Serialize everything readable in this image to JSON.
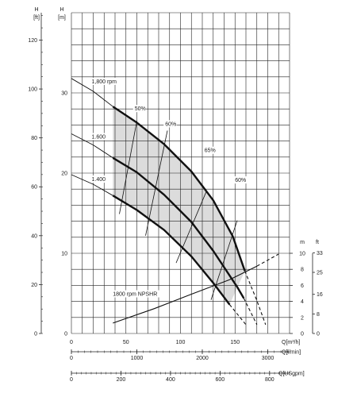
{
  "chart_data": {
    "type": "line",
    "title": "",
    "axes": {
      "h_ft": {
        "unit_label": "H",
        "unit_sub": "[ft]",
        "ticks": [
          "0",
          "20",
          "40",
          "60",
          "80",
          "100",
          "120"
        ],
        "range": [
          0,
          131.2
        ]
      },
      "h_m": {
        "unit_label": "H",
        "unit_sub": "[m]",
        "ticks": [
          "0",
          "10",
          "20",
          "30"
        ],
        "range": [
          0,
          40
        ]
      },
      "npshr_m": {
        "unit_label": "m",
        "ticks": [
          "0",
          "2",
          "4",
          "6",
          "8",
          "10"
        ],
        "range": [
          0,
          10
        ]
      },
      "npshr_ft": {
        "unit_label": "ft",
        "ticks": [
          "0",
          "8",
          "16",
          "25",
          "33"
        ],
        "range": [
          0,
          32.8
        ]
      },
      "q_m3h": {
        "unit_label": "Q[m³/h]",
        "ticks": [
          "0",
          "50",
          "100",
          "150"
        ],
        "range": [
          0,
          200
        ]
      },
      "q_lmin": {
        "unit_label": "Q[l/min]",
        "ticks": [
          "0",
          "1000",
          "2000",
          "3000"
        ],
        "range": [
          0,
          3333
        ]
      },
      "q_usgpm": {
        "unit_label": "Q[USgpm]",
        "ticks": [
          "0",
          "200",
          "400",
          "600",
          "800"
        ],
        "range": [
          0,
          880.6
        ]
      }
    },
    "series": [
      {
        "name": "1,800 rpm",
        "unit": "m / m³/h",
        "thin": [
          [
            0,
            31.8
          ],
          [
            20,
            30.2
          ],
          [
            38,
            28.3
          ]
        ],
        "thick": [
          [
            38,
            28.3
          ],
          [
            60,
            26.3
          ],
          [
            85,
            23.6
          ],
          [
            110,
            20.2
          ],
          [
            130,
            16.6
          ],
          [
            148,
            12.1
          ],
          [
            159,
            7.8
          ]
        ],
        "dashed": [
          [
            159,
            7.8
          ],
          [
            170,
            4.1
          ],
          [
            178,
            1.1
          ]
        ]
      },
      {
        "name": "1.600",
        "unit": "m / m³/h",
        "thin": [
          [
            0,
            24.9
          ],
          [
            20,
            23.5
          ],
          [
            38,
            21.9
          ]
        ],
        "thick": [
          [
            38,
            21.9
          ],
          [
            60,
            20.1
          ],
          [
            85,
            17.3
          ],
          [
            110,
            13.9
          ],
          [
            130,
            10.3
          ],
          [
            152,
            5.8
          ],
          [
            158,
            4.4
          ]
        ],
        "dashed": [
          [
            158,
            4.4
          ],
          [
            170,
            1.1
          ]
        ]
      },
      {
        "name": "1.400",
        "unit": "m / m³/h",
        "thin": [
          [
            0,
            19.8
          ],
          [
            20,
            18.6
          ],
          [
            38,
            17.2
          ]
        ],
        "thick": [
          [
            38,
            17.2
          ],
          [
            60,
            15.4
          ],
          [
            85,
            12.9
          ],
          [
            110,
            9.6
          ],
          [
            130,
            6.3
          ],
          [
            145,
            3.6
          ]
        ],
        "dashed": [
          [
            145,
            3.6
          ],
          [
            160,
            1.1
          ]
        ]
      }
    ],
    "efficiency_lines": [
      {
        "label": "50%",
        "points": [
          [
            44,
            14.9
          ],
          [
            60,
            26.5
          ]
        ]
      },
      {
        "label": "60%",
        "points": [
          [
            68,
            12.2
          ],
          [
            88,
            25.3
          ]
        ]
      },
      {
        "label": "65%",
        "points": [
          [
            96,
            8.8
          ],
          [
            124,
            17.8
          ]
        ]
      },
      {
        "label": "60%",
        "points": [
          [
            128,
            4.2
          ],
          [
            152,
            14.1
          ]
        ]
      }
    ],
    "npshr": {
      "name": "1800 rpm NPSHR",
      "unit": "m / m³/h",
      "solid": [
        [
          38,
          1.3
        ],
        [
          76,
          3.1
        ],
        [
          110,
          4.9
        ],
        [
          145,
          6.7
        ],
        [
          170,
          8.4
        ]
      ],
      "dashed": [
        [
          170,
          8.4
        ],
        [
          190,
          9.9
        ]
      ]
    },
    "shaded_region": "operating range between 1,400 and 1,800 rpm curves",
    "grid": true
  }
}
